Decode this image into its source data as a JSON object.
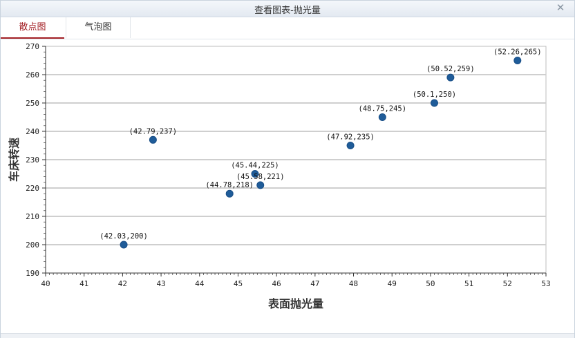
{
  "window": {
    "title": "查看图表-抛光量",
    "close_icon": "close-icon"
  },
  "tabs": [
    {
      "label": "散点图",
      "active": true
    },
    {
      "label": "气泡图",
      "active": false
    }
  ],
  "colors": {
    "accent": "#a31f24",
    "point": "#1f5c99",
    "point_stroke": "#1a4f87",
    "grid": "#cfcfcf"
  },
  "chart_data": {
    "type": "scatter",
    "xlabel": "表面抛光量",
    "ylabel": "车床转速",
    "xlim": [
      40,
      53
    ],
    "ylim": [
      190,
      270
    ],
    "xticks": [
      40,
      41,
      42,
      43,
      44,
      45,
      46,
      47,
      48,
      49,
      50,
      51,
      52,
      53
    ],
    "yticks": [
      190,
      200,
      210,
      220,
      230,
      240,
      250,
      260,
      270
    ],
    "grid": "horizontal",
    "points": [
      {
        "x": 42.03,
        "y": 200,
        "label": "(42.03,200)"
      },
      {
        "x": 42.79,
        "y": 237,
        "label": "(42.79,237)"
      },
      {
        "x": 44.78,
        "y": 218,
        "label": "(44.78,218)"
      },
      {
        "x": 45.44,
        "y": 225,
        "label": "(45.44,225)"
      },
      {
        "x": 45.58,
        "y": 221,
        "label": "(45.58,221)"
      },
      {
        "x": 47.92,
        "y": 235,
        "label": "(47.92,235)"
      },
      {
        "x": 48.75,
        "y": 245,
        "label": "(48.75,245)"
      },
      {
        "x": 50.1,
        "y": 250,
        "label": "(50.1,250)"
      },
      {
        "x": 50.52,
        "y": 259,
        "label": "(50.52,259)"
      },
      {
        "x": 52.26,
        "y": 265,
        "label": "(52.26,265)"
      }
    ]
  }
}
